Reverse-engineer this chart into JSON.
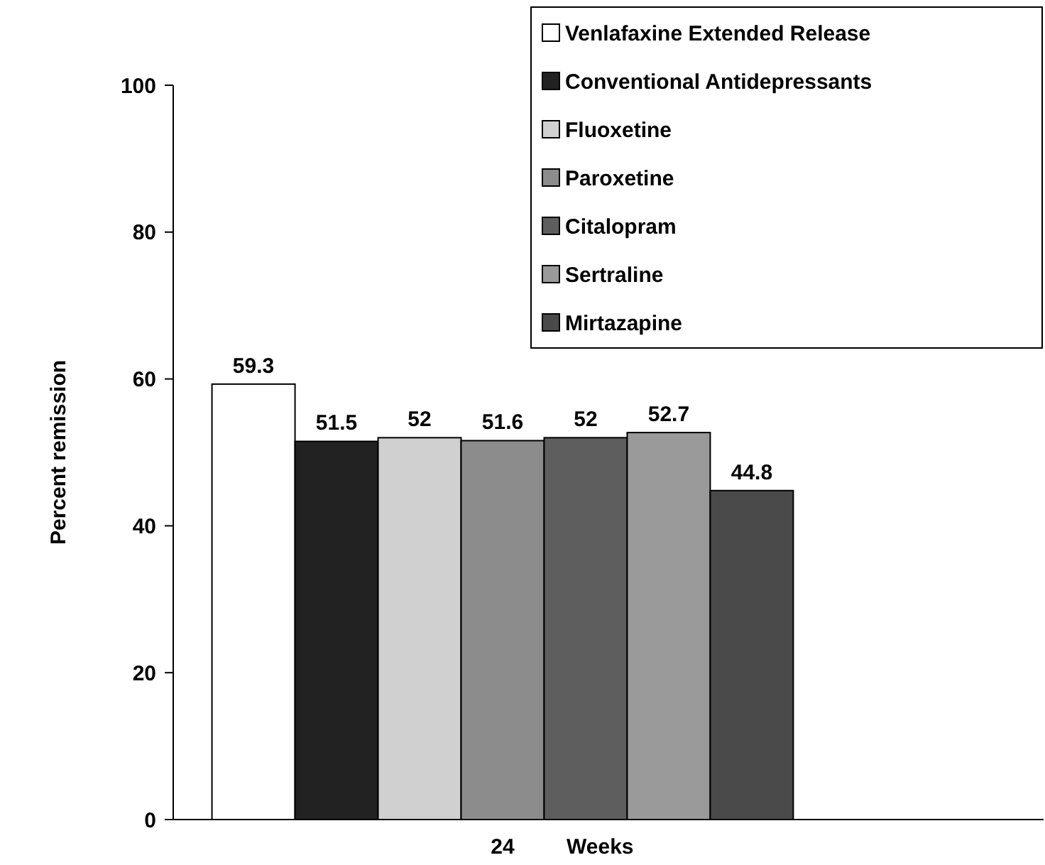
{
  "chart_data": {
    "type": "bar",
    "categories": [
      "24"
    ],
    "xlabel": "Weeks",
    "ylabel": "Percent remission",
    "ylim": [
      0,
      100
    ],
    "yticks": [
      0,
      20,
      40,
      60,
      80,
      100
    ],
    "data_labels": true,
    "legend": "top right",
    "grid": false,
    "series": [
      {
        "name": "Venlafaxine Extended Release",
        "color": "#ffffff",
        "values": [
          59.3
        ]
      },
      {
        "name": "Conventional Antidepressants",
        "color": "#222222",
        "values": [
          51.5
        ]
      },
      {
        "name": "Fluoxetine",
        "color": "#d0d0d0",
        "values": [
          52
        ]
      },
      {
        "name": "Paroxetine",
        "color": "#8c8c8c",
        "values": [
          51.6
        ]
      },
      {
        "name": "Citalopram",
        "color": "#5e5e5e",
        "values": [
          52
        ]
      },
      {
        "name": "Sertraline",
        "color": "#9a9a9a",
        "values": [
          52.7
        ]
      },
      {
        "name": "Mirtazapine",
        "color": "#4a4a4a",
        "values": [
          44.8
        ]
      }
    ]
  }
}
